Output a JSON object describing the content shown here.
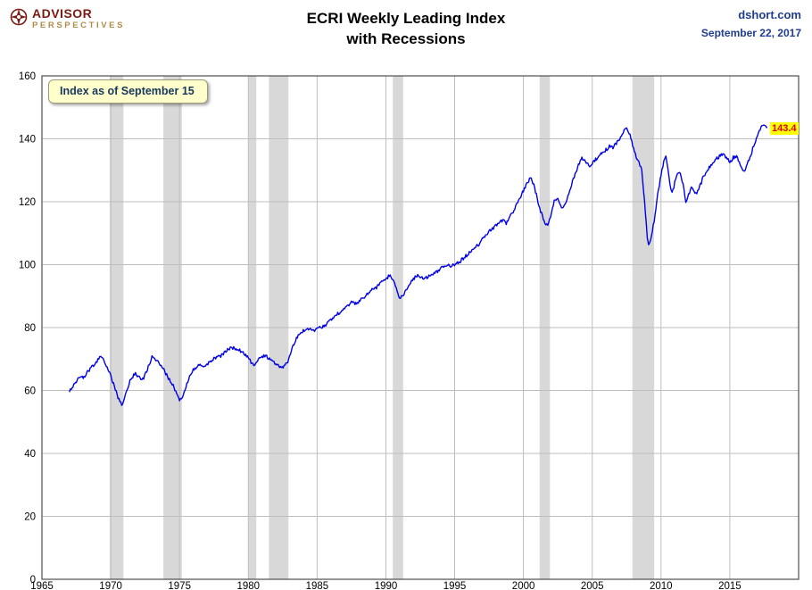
{
  "header": {
    "logo": {
      "line1": "ADVISOR",
      "line2": "PERSPECTIVES"
    },
    "title_line1": "ECRI Weekly Leading Index",
    "title_line2": "with Recessions",
    "source": "dshort.com",
    "date": "September 22, 2017"
  },
  "annotations": {
    "callout": "Index as of September 15",
    "last_value_label": "143.4"
  },
  "colors": {
    "line": "#0000E6",
    "recession_band": "#D8D8D8",
    "grid": "#BEBEBE",
    "plot_border": "#4d4d4d",
    "axis_text": "#000000",
    "header_blue": "#203D8F",
    "logo_red": "#7B1A12",
    "logo_gold": "#AD8C4A",
    "callout_bg": "#FFFFCB",
    "last_value_bg": "#FFFF00",
    "last_value_text": "#E00000"
  },
  "chart_data": {
    "type": "line",
    "title": "ECRI Weekly Leading Index with Recessions",
    "xlabel": "",
    "ylabel": "",
    "x_range": [
      1965,
      2020
    ],
    "y_range": [
      0,
      160
    ],
    "x_ticks": [
      1965,
      1970,
      1975,
      1980,
      1985,
      1990,
      1995,
      2000,
      2005,
      2010,
      2015
    ],
    "y_ticks": [
      0,
      20,
      40,
      60,
      80,
      100,
      120,
      140,
      160
    ],
    "grid": true,
    "legend": "none",
    "recessions": [
      [
        1969.92,
        1970.92
      ],
      [
        1973.83,
        1975.17
      ],
      [
        1980.0,
        1980.58
      ],
      [
        1981.5,
        1982.92
      ],
      [
        1990.5,
        1991.25
      ],
      [
        2001.17,
        2001.92
      ],
      [
        2007.92,
        2009.5
      ]
    ],
    "last_value": 143.4,
    "series": [
      {
        "name": "ECRI Weekly Leading Index",
        "points": [
          [
            1967.0,
            59.5
          ],
          [
            1967.25,
            61.5
          ],
          [
            1967.5,
            63.0
          ],
          [
            1967.75,
            64.5
          ],
          [
            1968.0,
            64.0
          ],
          [
            1968.25,
            65.5
          ],
          [
            1968.5,
            67.0
          ],
          [
            1968.75,
            68.0
          ],
          [
            1969.0,
            69.5
          ],
          [
            1969.2,
            70.5
          ],
          [
            1969.4,
            70.0
          ],
          [
            1969.6,
            68.5
          ],
          [
            1969.8,
            67.0
          ],
          [
            1970.0,
            64.5
          ],
          [
            1970.2,
            62.0
          ],
          [
            1970.4,
            59.5
          ],
          [
            1970.6,
            57.0
          ],
          [
            1970.8,
            55.5
          ],
          [
            1971.0,
            57.5
          ],
          [
            1971.2,
            60.5
          ],
          [
            1971.4,
            63.0
          ],
          [
            1971.6,
            64.5
          ],
          [
            1971.8,
            65.5
          ],
          [
            1972.0,
            64.5
          ],
          [
            1972.2,
            63.0
          ],
          [
            1972.4,
            64.0
          ],
          [
            1972.6,
            66.0
          ],
          [
            1972.8,
            68.5
          ],
          [
            1973.0,
            70.5
          ],
          [
            1973.2,
            70.0
          ],
          [
            1973.4,
            69.0
          ],
          [
            1973.6,
            68.0
          ],
          [
            1973.8,
            67.0
          ],
          [
            1974.0,
            65.5
          ],
          [
            1974.2,
            64.0
          ],
          [
            1974.4,
            62.5
          ],
          [
            1974.6,
            61.0
          ],
          [
            1974.8,
            59.0
          ],
          [
            1975.0,
            57.0
          ],
          [
            1975.2,
            58.0
          ],
          [
            1975.4,
            60.5
          ],
          [
            1975.6,
            63.0
          ],
          [
            1975.8,
            65.0
          ],
          [
            1976.0,
            66.5
          ],
          [
            1976.25,
            67.5
          ],
          [
            1976.5,
            68.5
          ],
          [
            1976.75,
            68.0
          ],
          [
            1977.0,
            68.5
          ],
          [
            1977.25,
            69.0
          ],
          [
            1977.5,
            70.0
          ],
          [
            1977.75,
            70.5
          ],
          [
            1978.0,
            71.0
          ],
          [
            1978.25,
            72.0
          ],
          [
            1978.5,
            73.0
          ],
          [
            1978.75,
            73.5
          ],
          [
            1979.0,
            73.5
          ],
          [
            1979.25,
            73.0
          ],
          [
            1979.5,
            72.5
          ],
          [
            1979.75,
            71.5
          ],
          [
            1980.0,
            70.5
          ],
          [
            1980.2,
            69.0
          ],
          [
            1980.4,
            68.0
          ],
          [
            1980.6,
            68.5
          ],
          [
            1980.8,
            70.0
          ],
          [
            1981.0,
            71.0
          ],
          [
            1981.2,
            71.0
          ],
          [
            1981.4,
            70.5
          ],
          [
            1981.6,
            70.0
          ],
          [
            1981.8,
            69.0
          ],
          [
            1982.0,
            68.5
          ],
          [
            1982.2,
            68.0
          ],
          [
            1982.4,
            67.5
          ],
          [
            1982.6,
            67.5
          ],
          [
            1982.8,
            68.5
          ],
          [
            1983.0,
            71.0
          ],
          [
            1983.25,
            74.0
          ],
          [
            1983.5,
            76.5
          ],
          [
            1983.75,
            78.0
          ],
          [
            1984.0,
            79.0
          ],
          [
            1984.25,
            80.0
          ],
          [
            1984.5,
            79.5
          ],
          [
            1984.75,
            79.0
          ],
          [
            1985.0,
            79.5
          ],
          [
            1985.25,
            80.0
          ],
          [
            1985.5,
            80.5
          ],
          [
            1985.75,
            81.5
          ],
          [
            1986.0,
            82.5
          ],
          [
            1986.25,
            83.5
          ],
          [
            1986.5,
            84.5
          ],
          [
            1986.75,
            85.0
          ],
          [
            1987.0,
            86.0
          ],
          [
            1987.25,
            87.0
          ],
          [
            1987.5,
            88.0
          ],
          [
            1987.75,
            87.5
          ],
          [
            1988.0,
            88.0
          ],
          [
            1988.25,
            89.0
          ],
          [
            1988.5,
            90.0
          ],
          [
            1988.75,
            91.0
          ],
          [
            1989.0,
            92.0
          ],
          [
            1989.25,
            92.5
          ],
          [
            1989.5,
            93.5
          ],
          [
            1989.75,
            94.5
          ],
          [
            1990.0,
            95.5
          ],
          [
            1990.25,
            96.5
          ],
          [
            1990.5,
            95.5
          ],
          [
            1990.75,
            92.5
          ],
          [
            1991.0,
            89.0
          ],
          [
            1991.2,
            90.0
          ],
          [
            1991.4,
            91.5
          ],
          [
            1991.6,
            93.0
          ],
          [
            1991.8,
            94.0
          ],
          [
            1992.0,
            95.5
          ],
          [
            1992.25,
            96.5
          ],
          [
            1992.5,
            96.0
          ],
          [
            1992.75,
            95.5
          ],
          [
            1993.0,
            96.0
          ],
          [
            1993.25,
            96.5
          ],
          [
            1993.5,
            97.5
          ],
          [
            1993.75,
            98.0
          ],
          [
            1994.0,
            99.0
          ],
          [
            1994.25,
            99.5
          ],
          [
            1994.5,
            100.0
          ],
          [
            1994.75,
            99.5
          ],
          [
            1995.0,
            100.0
          ],
          [
            1995.25,
            100.5
          ],
          [
            1995.5,
            101.5
          ],
          [
            1995.75,
            102.5
          ],
          [
            1996.0,
            103.5
          ],
          [
            1996.25,
            104.5
          ],
          [
            1996.5,
            105.5
          ],
          [
            1996.75,
            106.5
          ],
          [
            1997.0,
            108.0
          ],
          [
            1997.25,
            109.0
          ],
          [
            1997.5,
            110.5
          ],
          [
            1997.75,
            111.5
          ],
          [
            1998.0,
            112.5
          ],
          [
            1998.25,
            113.5
          ],
          [
            1998.5,
            114.0
          ],
          [
            1998.75,
            113.0
          ],
          [
            1999.0,
            115.0
          ],
          [
            1999.25,
            117.0
          ],
          [
            1999.5,
            119.0
          ],
          [
            1999.75,
            121.0
          ],
          [
            2000.0,
            123.5
          ],
          [
            2000.25,
            126.0
          ],
          [
            2000.5,
            127.5
          ],
          [
            2000.75,
            125.5
          ],
          [
            2001.0,
            121.0
          ],
          [
            2001.25,
            117.0
          ],
          [
            2001.5,
            114.0
          ],
          [
            2001.7,
            112.5
          ],
          [
            2001.9,
            114.0
          ],
          [
            2002.1,
            118.0
          ],
          [
            2002.3,
            121.0
          ],
          [
            2002.5,
            120.5
          ],
          [
            2002.7,
            118.5
          ],
          [
            2002.9,
            118.0
          ],
          [
            2003.1,
            120.0
          ],
          [
            2003.3,
            122.5
          ],
          [
            2003.5,
            125.5
          ],
          [
            2003.75,
            129.0
          ],
          [
            2004.0,
            131.5
          ],
          [
            2004.25,
            134.0
          ],
          [
            2004.5,
            133.0
          ],
          [
            2004.75,
            131.5
          ],
          [
            2005.0,
            132.0
          ],
          [
            2005.25,
            133.5
          ],
          [
            2005.5,
            134.5
          ],
          [
            2005.75,
            135.5
          ],
          [
            2006.0,
            136.5
          ],
          [
            2006.25,
            137.5
          ],
          [
            2006.5,
            137.0
          ],
          [
            2006.75,
            138.5
          ],
          [
            2007.0,
            140.0
          ],
          [
            2007.25,
            142.0
          ],
          [
            2007.5,
            143.5
          ],
          [
            2007.75,
            141.5
          ],
          [
            2008.0,
            137.0
          ],
          [
            2008.2,
            134.0
          ],
          [
            2008.4,
            132.5
          ],
          [
            2008.6,
            130.0
          ],
          [
            2008.8,
            120.0
          ],
          [
            2009.0,
            109.0
          ],
          [
            2009.1,
            106.5
          ],
          [
            2009.25,
            108.0
          ],
          [
            2009.5,
            114.0
          ],
          [
            2009.75,
            122.0
          ],
          [
            2010.0,
            128.5
          ],
          [
            2010.2,
            133.0
          ],
          [
            2010.35,
            134.5
          ],
          [
            2010.5,
            130.5
          ],
          [
            2010.65,
            125.0
          ],
          [
            2010.8,
            122.5
          ],
          [
            2011.0,
            126.0
          ],
          [
            2011.2,
            129.5
          ],
          [
            2011.4,
            129.0
          ],
          [
            2011.6,
            125.5
          ],
          [
            2011.8,
            119.5
          ],
          [
            2012.0,
            122.0
          ],
          [
            2012.2,
            124.5
          ],
          [
            2012.4,
            123.5
          ],
          [
            2012.6,
            122.5
          ],
          [
            2012.8,
            124.5
          ],
          [
            2013.0,
            127.0
          ],
          [
            2013.25,
            129.5
          ],
          [
            2013.5,
            131.0
          ],
          [
            2013.75,
            132.0
          ],
          [
            2014.0,
            133.5
          ],
          [
            2014.25,
            134.5
          ],
          [
            2014.5,
            135.5
          ],
          [
            2014.75,
            134.0
          ],
          [
            2015.0,
            132.5
          ],
          [
            2015.25,
            134.0
          ],
          [
            2015.5,
            134.5
          ],
          [
            2015.75,
            132.0
          ],
          [
            2016.0,
            129.5
          ],
          [
            2016.2,
            131.0
          ],
          [
            2016.4,
            133.5
          ],
          [
            2016.6,
            136.0
          ],
          [
            2016.8,
            138.5
          ],
          [
            2017.0,
            141.0
          ],
          [
            2017.2,
            143.0
          ],
          [
            2017.4,
            144.5
          ],
          [
            2017.55,
            144.0
          ],
          [
            2017.7,
            143.4
          ]
        ]
      }
    ]
  }
}
